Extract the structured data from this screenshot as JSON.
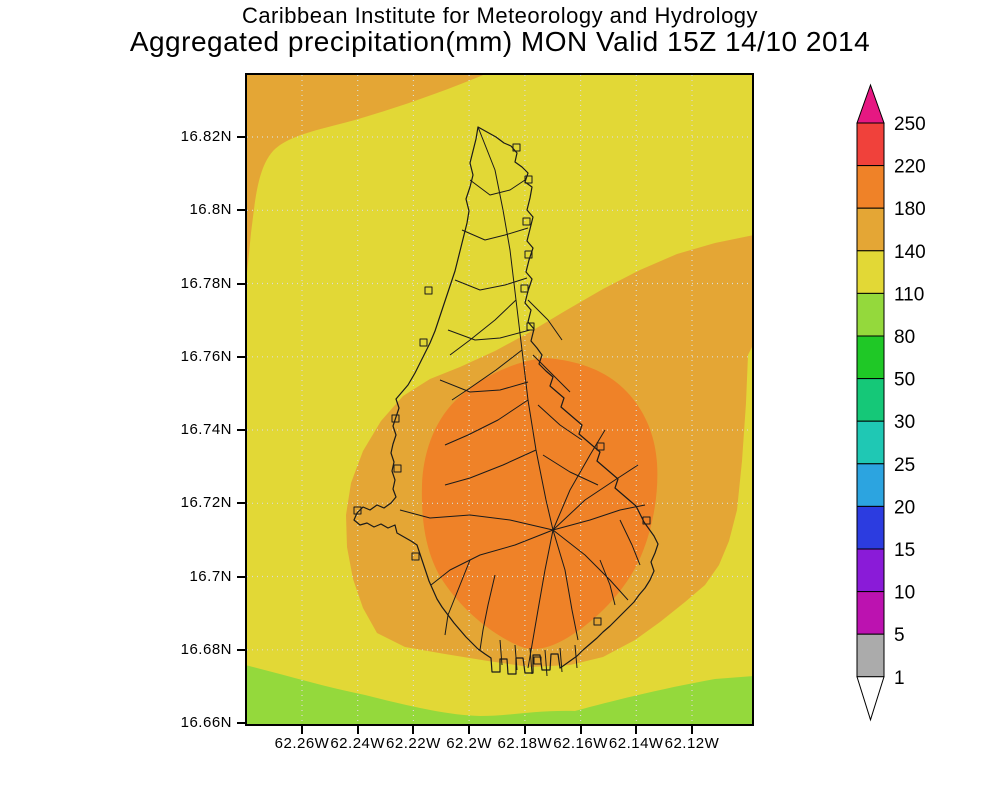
{
  "title": {
    "line1": "Caribbean Institute for Meteorology and Hydrology",
    "line2": "Aggregated precipitation(mm) MON Valid 15Z 14/10 2014"
  },
  "axes": {
    "y_tick_labels": [
      "16.82N",
      "16.8N",
      "16.78N",
      "16.76N",
      "16.74N",
      "16.72N",
      "16.7N",
      "16.68N",
      "16.66N"
    ],
    "x_tick_labels": [
      "62.26W",
      "62.24W",
      "62.22W",
      "62.2W",
      "62.18W",
      "62.16W",
      "62.14W",
      "62.12W"
    ]
  },
  "colorbar": {
    "boundary_labels": [
      "250",
      "220",
      "180",
      "140",
      "110",
      "80",
      "50",
      "30",
      "25",
      "20",
      "15",
      "10",
      "5",
      "1"
    ],
    "segment_colors_top_to_bottom": [
      "#F0413B",
      "#EF8228",
      "#E4A635",
      "#E2D836",
      "#94D93C",
      "#1FC826",
      "#15C878",
      "#1FC8B4",
      "#2CA4E0",
      "#2C3CE0",
      "#8A1BD8",
      "#BC12B0",
      "#ABABAB"
    ],
    "top_arrow_color": "#E61882",
    "bottom_arrow_color": "#FFFFFF"
  },
  "map_colors": {
    "band_110_140_background": "#E2D836",
    "band_140_180": "#E4A635",
    "band_180_220_core": "#EF8228",
    "band_80_110_south": "#94D93C",
    "island_outline": "#1A1A1A",
    "gridline": "#DCDCD2"
  },
  "chart_data": {
    "type": "heatmap",
    "subtype": "filled contour map",
    "institution": "Caribbean Institute for Meteorology and Hydrology",
    "title": "Aggregated precipitation(mm) MON Valid 15Z 14/10 2014",
    "units": "mm",
    "region_shown": "Montserrat island with watershed/stream network overlay",
    "x_tick_labels": [
      "62.26W",
      "62.24W",
      "62.22W",
      "62.2W",
      "62.18W",
      "62.16W",
      "62.14W",
      "62.12W"
    ],
    "y_tick_labels": [
      "16.82N",
      "16.8N",
      "16.78N",
      "16.76N",
      "16.74N",
      "16.72N",
      "16.7N",
      "16.68N",
      "16.66N"
    ],
    "x_range_approx_deg_west": [
      62.28,
      62.1
    ],
    "y_range_approx_deg_north": [
      16.655,
      16.838
    ],
    "grid": "dotted graticule every 0.02 degrees",
    "legend_position": "vertical colorbar at right with open arrow ends",
    "contour_levels_mm": [
      1,
      5,
      10,
      15,
      20,
      25,
      30,
      50,
      80,
      110,
      140,
      180,
      220,
      250
    ],
    "level_colors_mm": {
      "1-5": "#ABABAB",
      "5-10": "#BC12B0",
      "10-15": "#8A1BD8",
      "15-20": "#2C3CE0",
      "20-25": "#2CA4E0",
      "25-30": "#1FC8B4",
      "30-50": "#15C878",
      "50-80": "#1FC826",
      "80-110": "#94D93C",
      "110-140": "#E2D836",
      "140-180": "#E4A635",
      "180-220": "#EF8228",
      "220-250": "#F0413B",
      ">250": "#E61882"
    },
    "visible_regions": [
      {
        "band_mm": "110-140",
        "color": "#E2D836",
        "description": "yellow background covering most of the domain"
      },
      {
        "band_mm": "140-180",
        "color": "#E4A635",
        "description": "patch in the northwest corner, a band entering from the east edge near 16.78N-16.80N, and a broad ring over central and southern Montserrat"
      },
      {
        "band_mm": "180-220",
        "color": "#EF8228",
        "description": "precipitation core over south-central Montserrat, roughly 16.70N-16.76N and 62.15W-62.20W"
      },
      {
        "band_mm": "80-110",
        "color": "#94D93C",
        "description": "yellow-green band along the entire southern edge of the domain below about 16.67N"
      }
    ]
  }
}
